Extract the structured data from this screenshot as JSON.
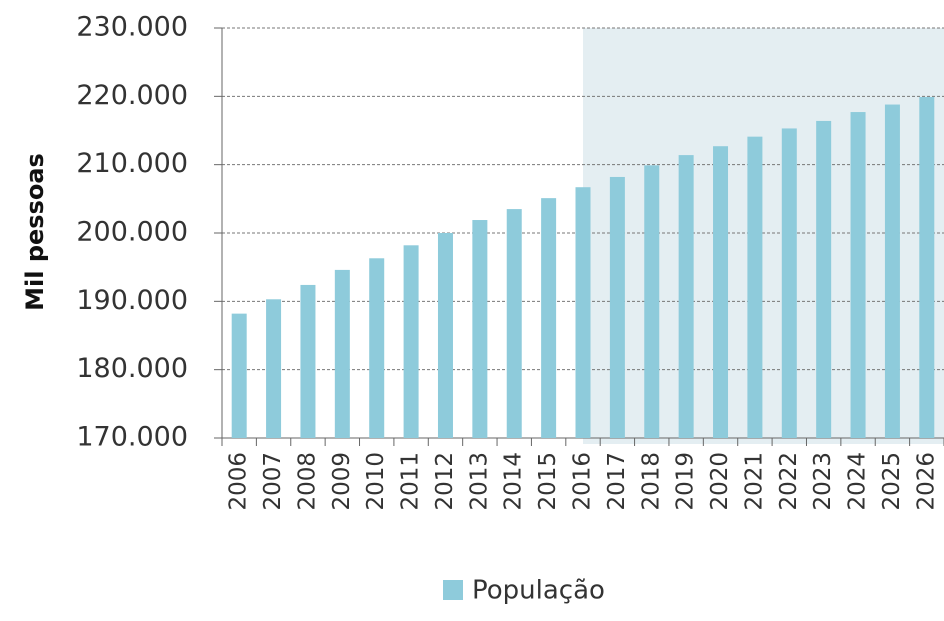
{
  "chart_data": {
    "type": "bar",
    "y_label": "Mil pessoas",
    "categories": [
      "2006",
      "2007",
      "2008",
      "2009",
      "2010",
      "2011",
      "2012",
      "2013",
      "2014",
      "2015",
      "2016",
      "2017",
      "2018",
      "2019",
      "2020",
      "2021",
      "2022",
      "2023",
      "2024",
      "2025",
      "2026"
    ],
    "series": [
      {
        "name": "População",
        "color": "#8ecbdb",
        "values": [
          188200,
          190300,
          192400,
          194600,
          196300,
          198200,
          200000,
          201900,
          203500,
          205100,
          206700,
          208200,
          209900,
          211400,
          212700,
          214100,
          215300,
          216400,
          217700,
          218800,
          219900
        ]
      }
    ],
    "ylim": [
      170000,
      230000
    ],
    "yticks": [
      {
        "value": 170000,
        "label": "170.000"
      },
      {
        "value": 180000,
        "label": "180.000"
      },
      {
        "value": 190000,
        "label": "190.000"
      },
      {
        "value": 200000,
        "label": "200.000"
      },
      {
        "value": 210000,
        "label": "210.000"
      },
      {
        "value": 220000,
        "label": "220.000"
      },
      {
        "value": 230000,
        "label": "230.000"
      }
    ],
    "grid": true,
    "legend": "bottom",
    "shaded_region": {
      "from": "2016",
      "color": "#e4eef2"
    }
  }
}
